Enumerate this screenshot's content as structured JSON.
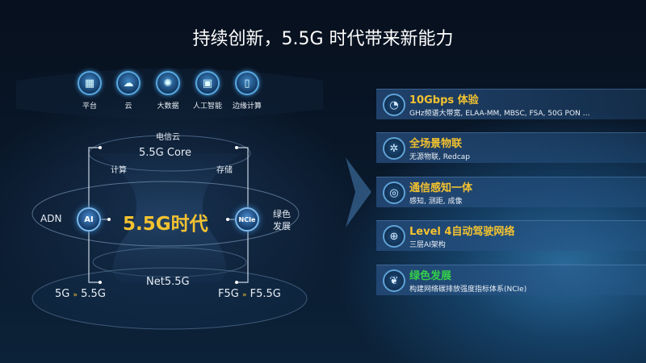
{
  "title": "持续创新，5.5G 时代带来新能力",
  "top_icons": [
    {
      "icon": "platform-icon",
      "label": "平台"
    },
    {
      "icon": "cloud-icon",
      "label": "云"
    },
    {
      "icon": "big-data-icon",
      "label": "大数据"
    },
    {
      "icon": "ai-chip-icon",
      "label": "人工智能"
    },
    {
      "icon": "edge-computing-icon",
      "label": "边缘计算"
    }
  ],
  "diagram": {
    "telecom_cloud": "电信云",
    "core": "5.5G Core",
    "compute": "计算",
    "storage": "存储",
    "center": "5.5G时代",
    "adn": "ADN",
    "ai": "AI",
    "ncie": "NCIe",
    "green": "绿色发展",
    "net": "Net5.5G",
    "mobile_from": "5G",
    "mobile_to": "5.5G",
    "fixed_from": "F5G",
    "fixed_to": "F5.5G",
    "arrow_glyph": "»"
  },
  "capabilities": [
    {
      "icon": "speed-gauge-icon",
      "title": "10Gbps 体验",
      "desc": "GHz频谱大带宽, ELAA-MM, MBSC, FSA, 50G PON …",
      "color": "#f3c230"
    },
    {
      "icon": "iot-network-icon",
      "title": "全场景物联",
      "desc": "无源物联, Redcap",
      "color": "#f3c230"
    },
    {
      "icon": "sensing-icon",
      "title": "通信感知一体",
      "desc": "感知, 测距, 成像",
      "color": "#f3c230"
    },
    {
      "icon": "autonomous-network-icon",
      "title": "Level 4自动驾驶网络",
      "desc": "三层AI架构",
      "color": "#f3c230"
    },
    {
      "icon": "leaf-icon",
      "title": "绿色发展",
      "desc": "构建网络碳排放强度指标体系(NCIe)",
      "color": "#35d04a"
    }
  ]
}
